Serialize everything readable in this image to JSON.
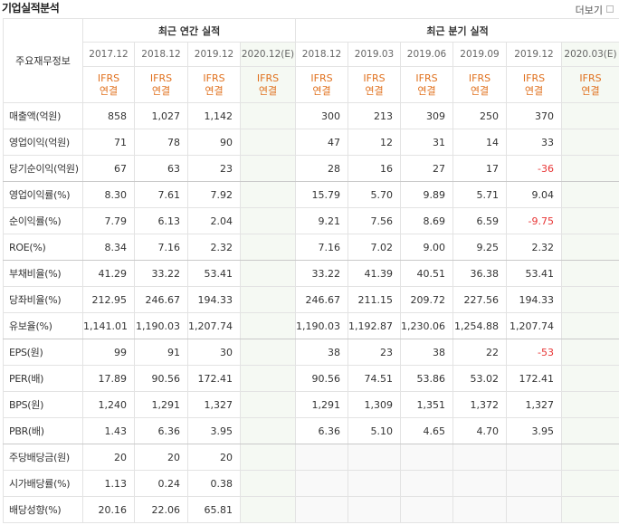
{
  "header": {
    "title": "기업실적분석",
    "more": "더보기"
  },
  "table": {
    "corner": "주요재무정보",
    "groups": [
      "최근 연간 실적",
      "최근 분기 실적"
    ],
    "periods": [
      "2017.12",
      "2018.12",
      "2019.12",
      "2020.12(E)",
      "2018.12",
      "2019.03",
      "2019.06",
      "2019.09",
      "2019.12",
      "2020.03(E)"
    ],
    "basis": [
      {
        "standard": "IFRS",
        "scope": "연결"
      },
      {
        "standard": "IFRS",
        "scope": "연결"
      },
      {
        "standard": "IFRS",
        "scope": "연결"
      },
      {
        "standard": "IFRS",
        "scope": "연결"
      },
      {
        "standard": "IFRS",
        "scope": "연결"
      },
      {
        "standard": "IFRS",
        "scope": "연결"
      },
      {
        "standard": "IFRS",
        "scope": "연결"
      },
      {
        "standard": "IFRS",
        "scope": "연결"
      },
      {
        "standard": "IFRS",
        "scope": "연결"
      },
      {
        "standard": "IFRS",
        "scope": "연결"
      }
    ],
    "rows": [
      {
        "label": "매출액(억원)",
        "values": [
          "858",
          "1,027",
          "1,142",
          null,
          "300",
          "213",
          "309",
          "250",
          "370",
          null
        ]
      },
      {
        "label": "영업이익(억원)",
        "values": [
          "71",
          "78",
          "90",
          null,
          "47",
          "12",
          "31",
          "14",
          "33",
          null
        ]
      },
      {
        "label": "당기순이익(억원)",
        "values": [
          "67",
          "63",
          "23",
          null,
          "28",
          "16",
          "27",
          "17",
          "-36",
          null
        ]
      },
      {
        "label": "영업이익률(%)",
        "values": [
          "8.30",
          "7.61",
          "7.92",
          null,
          "15.79",
          "5.70",
          "9.89",
          "5.71",
          "9.04",
          null
        ]
      },
      {
        "label": "순이익률(%)",
        "values": [
          "7.79",
          "6.13",
          "2.04",
          null,
          "9.21",
          "7.56",
          "8.69",
          "6.59",
          "-9.75",
          null
        ]
      },
      {
        "label": "ROE(%)",
        "values": [
          "8.34",
          "7.16",
          "2.32",
          null,
          "7.16",
          "7.02",
          "9.00",
          "9.25",
          "2.32",
          null
        ]
      },
      {
        "label": "부채비율(%)",
        "values": [
          "41.29",
          "33.22",
          "53.41",
          null,
          "33.22",
          "41.39",
          "40.51",
          "36.38",
          "53.41",
          null
        ]
      },
      {
        "label": "당좌비율(%)",
        "values": [
          "212.95",
          "246.67",
          "194.33",
          null,
          "246.67",
          "211.15",
          "209.72",
          "227.56",
          "194.33",
          null
        ]
      },
      {
        "label": "유보율(%)",
        "values": [
          "1,141.01",
          "1,190.03",
          "1,207.74",
          null,
          "1,190.03",
          "1,192.87",
          "1,230.06",
          "1,254.88",
          "1,207.74",
          null
        ]
      },
      {
        "label": "EPS(원)",
        "values": [
          "99",
          "91",
          "30",
          null,
          "38",
          "23",
          "38",
          "22",
          "-53",
          null
        ]
      },
      {
        "label": "PER(배)",
        "values": [
          "17.89",
          "90.56",
          "172.41",
          null,
          "90.56",
          "74.51",
          "53.86",
          "53.02",
          "172.41",
          null
        ]
      },
      {
        "label": "BPS(원)",
        "values": [
          "1,240",
          "1,291",
          "1,327",
          null,
          "1,291",
          "1,309",
          "1,351",
          "1,372",
          "1,327",
          null
        ]
      },
      {
        "label": "PBR(배)",
        "values": [
          "1.43",
          "6.36",
          "3.95",
          null,
          "6.36",
          "5.10",
          "4.65",
          "4.70",
          "3.95",
          null
        ]
      },
      {
        "label": "주당배당금(원)",
        "values": [
          "20",
          "20",
          "20",
          null,
          null,
          null,
          null,
          null,
          null,
          null
        ]
      },
      {
        "label": "시가배당률(%)",
        "values": [
          "1.13",
          "0.24",
          "0.38",
          null,
          null,
          null,
          null,
          null,
          null,
          null
        ]
      },
      {
        "label": "배당성향(%)",
        "values": [
          "20.16",
          "22.06",
          "65.81",
          null,
          null,
          null,
          null,
          null,
          null,
          null
        ]
      }
    ]
  }
}
